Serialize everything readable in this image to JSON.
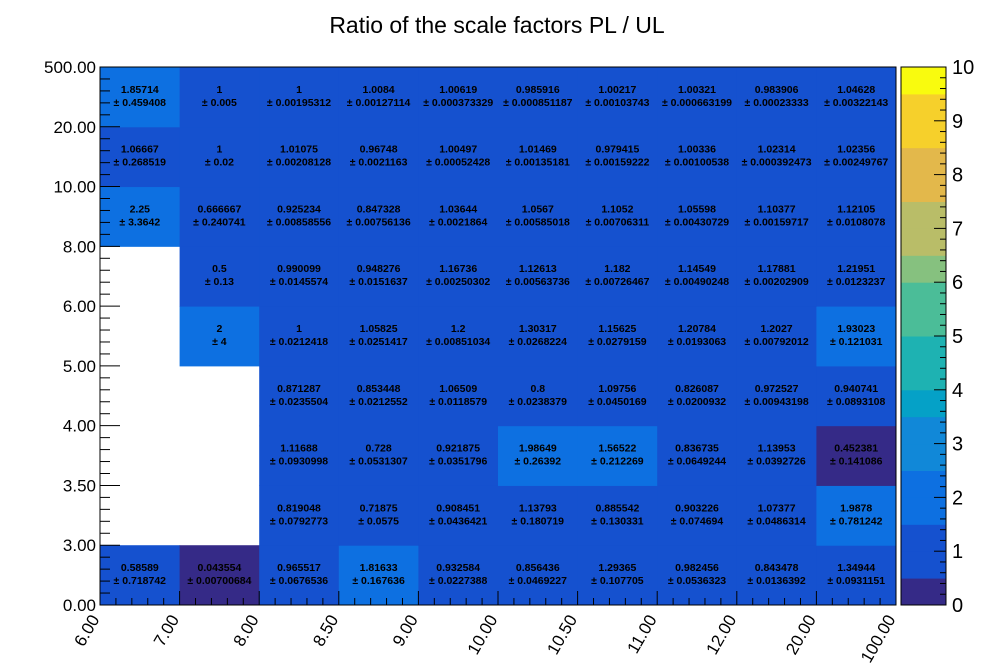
{
  "chart_data": {
    "type": "heatmap",
    "title": "Ratio of the scale factors PL / UL",
    "x_edges": [
      "6.00",
      "7.00",
      "8.00",
      "8.50",
      "9.00",
      "10.00",
      "10.50",
      "11.00",
      "12.00",
      "20.00",
      "100.00"
    ],
    "y_edges": [
      "0.00",
      "3.00",
      "3.50",
      "4.00",
      "5.00",
      "6.00",
      "8.00",
      "10.00",
      "20.00",
      "500.00"
    ],
    "zlim": [
      0,
      10
    ],
    "colorbar_ticks": [
      "0",
      "1",
      "2",
      "3",
      "4",
      "5",
      "6",
      "7",
      "8",
      "9",
      "10"
    ],
    "rows": [
      {
        "cells": [
          {
            "v": "0.58589",
            "e": "± 0.718742"
          },
          {
            "v": "0.043554",
            "e": "± 0.00700684"
          },
          {
            "v": "0.965517",
            "e": "± 0.0676536"
          },
          {
            "v": "1.81633",
            "e": "± 0.167636"
          },
          {
            "v": "0.932584",
            "e": "± 0.0227388"
          },
          {
            "v": "0.856436",
            "e": "± 0.0469227"
          },
          {
            "v": "1.29365",
            "e": "± 0.107705"
          },
          {
            "v": "0.982456",
            "e": "± 0.0536323"
          },
          {
            "v": "0.843478",
            "e": "± 0.0136392"
          },
          {
            "v": "1.34944",
            "e": "± 0.0931151"
          }
        ]
      },
      {
        "cells": [
          null,
          null,
          {
            "v": "0.819048",
            "e": "± 0.0792773"
          },
          {
            "v": "0.71875",
            "e": "± 0.0575"
          },
          {
            "v": "0.908451",
            "e": "± 0.0436421"
          },
          {
            "v": "1.13793",
            "e": "± 0.180719"
          },
          {
            "v": "0.885542",
            "e": "± 0.130331"
          },
          {
            "v": "0.903226",
            "e": "± 0.074694"
          },
          {
            "v": "1.07377",
            "e": "± 0.0486314"
          },
          {
            "v": "1.9878",
            "e": "± 0.781242"
          }
        ]
      },
      {
        "cells": [
          null,
          null,
          {
            "v": "1.11688",
            "e": "± 0.0930998"
          },
          {
            "v": "0.728",
            "e": "± 0.0531307"
          },
          {
            "v": "0.921875",
            "e": "± 0.0351796"
          },
          {
            "v": "1.98649",
            "e": "± 0.26392"
          },
          {
            "v": "1.56522",
            "e": "± 0.212269"
          },
          {
            "v": "0.836735",
            "e": "± 0.0649244"
          },
          {
            "v": "1.13953",
            "e": "± 0.0392726"
          },
          {
            "v": "0.452381",
            "e": "± 0.141086"
          }
        ]
      },
      {
        "cells": [
          null,
          null,
          {
            "v": "0.871287",
            "e": "± 0.0235504"
          },
          {
            "v": "0.853448",
            "e": "± 0.0212552"
          },
          {
            "v": "1.06509",
            "e": "± 0.0118579"
          },
          {
            "v": "0.8",
            "e": "± 0.0238379"
          },
          {
            "v": "1.09756",
            "e": "± 0.0450169"
          },
          {
            "v": "0.826087",
            "e": "± 0.0200932"
          },
          {
            "v": "0.972527",
            "e": "± 0.00943198"
          },
          {
            "v": "0.940741",
            "e": "± 0.0893108"
          }
        ]
      },
      {
        "cells": [
          null,
          {
            "v": "2",
            "e": "± 4"
          },
          {
            "v": "1",
            "e": "± 0.0212418"
          },
          {
            "v": "1.05825",
            "e": "± 0.0251417"
          },
          {
            "v": "1.2",
            "e": "± 0.00851034"
          },
          {
            "v": "1.30317",
            "e": "± 0.0268224"
          },
          {
            "v": "1.15625",
            "e": "± 0.0279159"
          },
          {
            "v": "1.20784",
            "e": "± 0.0193063"
          },
          {
            "v": "1.2027",
            "e": "± 0.00792012"
          },
          {
            "v": "1.93023",
            "e": "± 0.121031"
          }
        ]
      },
      {
        "cells": [
          null,
          {
            "v": "0.5",
            "e": "± 0.13"
          },
          {
            "v": "0.990099",
            "e": "± 0.0145574"
          },
          {
            "v": "0.948276",
            "e": "± 0.0151637"
          },
          {
            "v": "1.16736",
            "e": "± 0.00250302"
          },
          {
            "v": "1.12613",
            "e": "± 0.00563736"
          },
          {
            "v": "1.182",
            "e": "± 0.00726467"
          },
          {
            "v": "1.14549",
            "e": "± 0.00490248"
          },
          {
            "v": "1.17881",
            "e": "± 0.00202909"
          },
          {
            "v": "1.21951",
            "e": "± 0.0123237"
          }
        ]
      },
      {
        "cells": [
          {
            "v": "2.25",
            "e": "± 3.3642"
          },
          {
            "v": "0.666667",
            "e": "± 0.240741"
          },
          {
            "v": "0.925234",
            "e": "± 0.00858556"
          },
          {
            "v": "0.847328",
            "e": "± 0.00756136"
          },
          {
            "v": "1.03644",
            "e": "± 0.0021864"
          },
          {
            "v": "1.0567",
            "e": "± 0.00585018"
          },
          {
            "v": "1.1052",
            "e": "± 0.00706311"
          },
          {
            "v": "1.05598",
            "e": "± 0.00430729"
          },
          {
            "v": "1.10377",
            "e": "± 0.00159717"
          },
          {
            "v": "1.12105",
            "e": "± 0.0108078"
          }
        ]
      },
      {
        "cells": [
          {
            "v": "1.06667",
            "e": "± 0.268519"
          },
          {
            "v": "1",
            "e": "± 0.02"
          },
          {
            "v": "1.01075",
            "e": "± 0.00208128"
          },
          {
            "v": "0.96748",
            "e": "± 0.0021163"
          },
          {
            "v": "1.00497",
            "e": "± 0.00052428"
          },
          {
            "v": "1.01469",
            "e": "± 0.00135181"
          },
          {
            "v": "0.979415",
            "e": "± 0.00159222"
          },
          {
            "v": "1.00336",
            "e": "± 0.00100538"
          },
          {
            "v": "1.02314",
            "e": "± 0.000392473"
          },
          {
            "v": "1.02356",
            "e": "± 0.00249767"
          }
        ]
      },
      {
        "cells": [
          {
            "v": "1.85714",
            "e": "± 0.459408"
          },
          {
            "v": "1",
            "e": "± 0.005"
          },
          {
            "v": "1",
            "e": "± 0.00195312"
          },
          {
            "v": "1.0084",
            "e": "± 0.00127114"
          },
          {
            "v": "1.00619",
            "e": "± 0.000373329"
          },
          {
            "v": "0.985916",
            "e": "± 0.000851187"
          },
          {
            "v": "1.00217",
            "e": "± 0.00103743"
          },
          {
            "v": "1.00321",
            "e": "± 0.000663199"
          },
          {
            "v": "0.983906",
            "e": "± 0.00023333"
          },
          {
            "v": "1.04628",
            "e": "± 0.00322143"
          }
        ]
      }
    ],
    "palette": [
      "#352a87",
      "#1551cf",
      "#0d70e1",
      "#1188d8",
      "#05a1c7",
      "#1eb2b2",
      "#4bbd98",
      "#86c17f",
      "#b9bd68",
      "#e3b84b",
      "#f6d02b",
      "#f9fb0e"
    ]
  }
}
